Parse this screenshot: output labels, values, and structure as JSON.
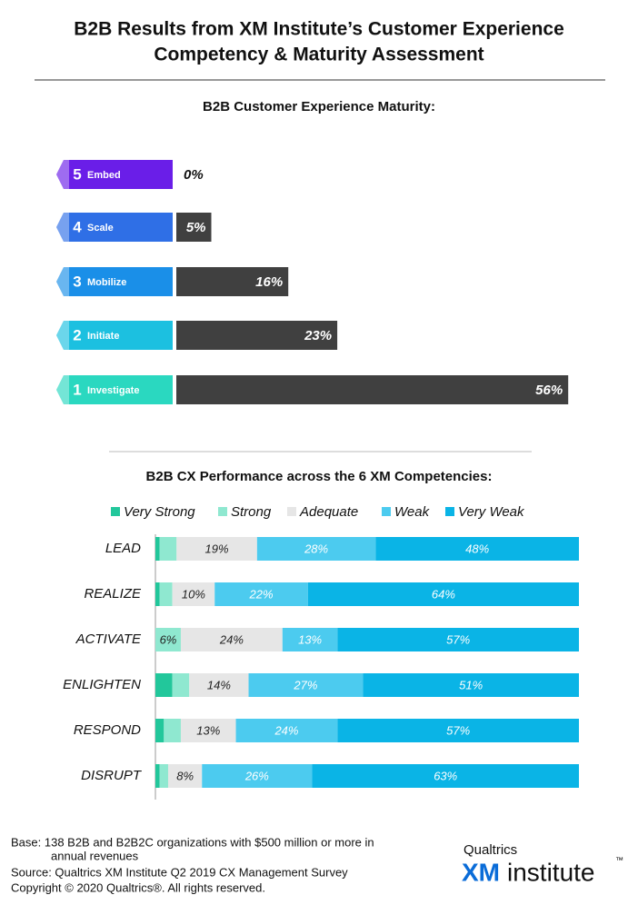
{
  "title": [
    "B2B Results from XM Institute’s Customer Experience",
    "Competency & Maturity Assessment"
  ],
  "chart_data": [
    {
      "type": "bar",
      "title": "B2B Customer Experience Maturity:",
      "levels": [
        5,
        4,
        3,
        2,
        1
      ],
      "categories": [
        "Embed",
        "Scale",
        "Mobilize",
        "Initiate",
        "Investigate"
      ],
      "level_colors": [
        "#6a1ee8",
        "#2f6fe6",
        "#1a8fe8",
        "#1cc0e0",
        "#2ad8c0"
      ],
      "values": [
        0,
        5,
        16,
        23,
        56
      ],
      "value_labels": [
        "0%",
        "5%",
        "16%",
        "23%",
        "56%"
      ],
      "color": "#404040"
    },
    {
      "type": "stacked_bar",
      "title": "B2B CX Performance across the 6 XM Competencies:",
      "categories": [
        "LEAD",
        "REALIZE",
        "ACTIVATE",
        "ENLIGHTEN",
        "RESPOND",
        "DISRUPT"
      ],
      "series": [
        {
          "name": "Very Strong",
          "color": "#22c79b",
          "values": [
            1,
            1,
            0,
            4,
            2,
            1
          ]
        },
        {
          "name": "Strong",
          "color": "#8fe8d0",
          "values": [
            4,
            3,
            6,
            4,
            4,
            2
          ],
          "value_labels": [
            null,
            null,
            "6%",
            null,
            null,
            null
          ]
        },
        {
          "name": "Adequate",
          "color": "#e6e6e6",
          "values": [
            19,
            10,
            24,
            14,
            13,
            8
          ],
          "value_labels": [
            "19%",
            "10%",
            "24%",
            "14%",
            "13%",
            "8%"
          ]
        },
        {
          "name": "Weak",
          "color": "#4ccbef",
          "values": [
            28,
            22,
            13,
            27,
            24,
            26
          ],
          "value_labels": [
            "28%",
            "22%",
            "13%",
            "27%",
            "24%",
            "26%"
          ]
        },
        {
          "name": "Very Weak",
          "color": "#0ab4e6",
          "values": [
            48,
            64,
            57,
            51,
            57,
            63
          ],
          "value_labels": [
            "48%",
            "64%",
            "57%",
            "51%",
            "57%",
            "63%"
          ]
        }
      ]
    }
  ],
  "footer": [
    "Base: 138 B2B and B2B2C organizations with $500 million or more in",
    "annual revenues",
    "Source: Qualtrics XM Institute Q2 2019 CX Management Survey",
    "Copyright © 2020 Qualtrics®.  All rights reserved."
  ],
  "logo": {
    "company": "Qualtrics",
    "xm": "XM",
    "name": "institute",
    "mark": "™"
  }
}
